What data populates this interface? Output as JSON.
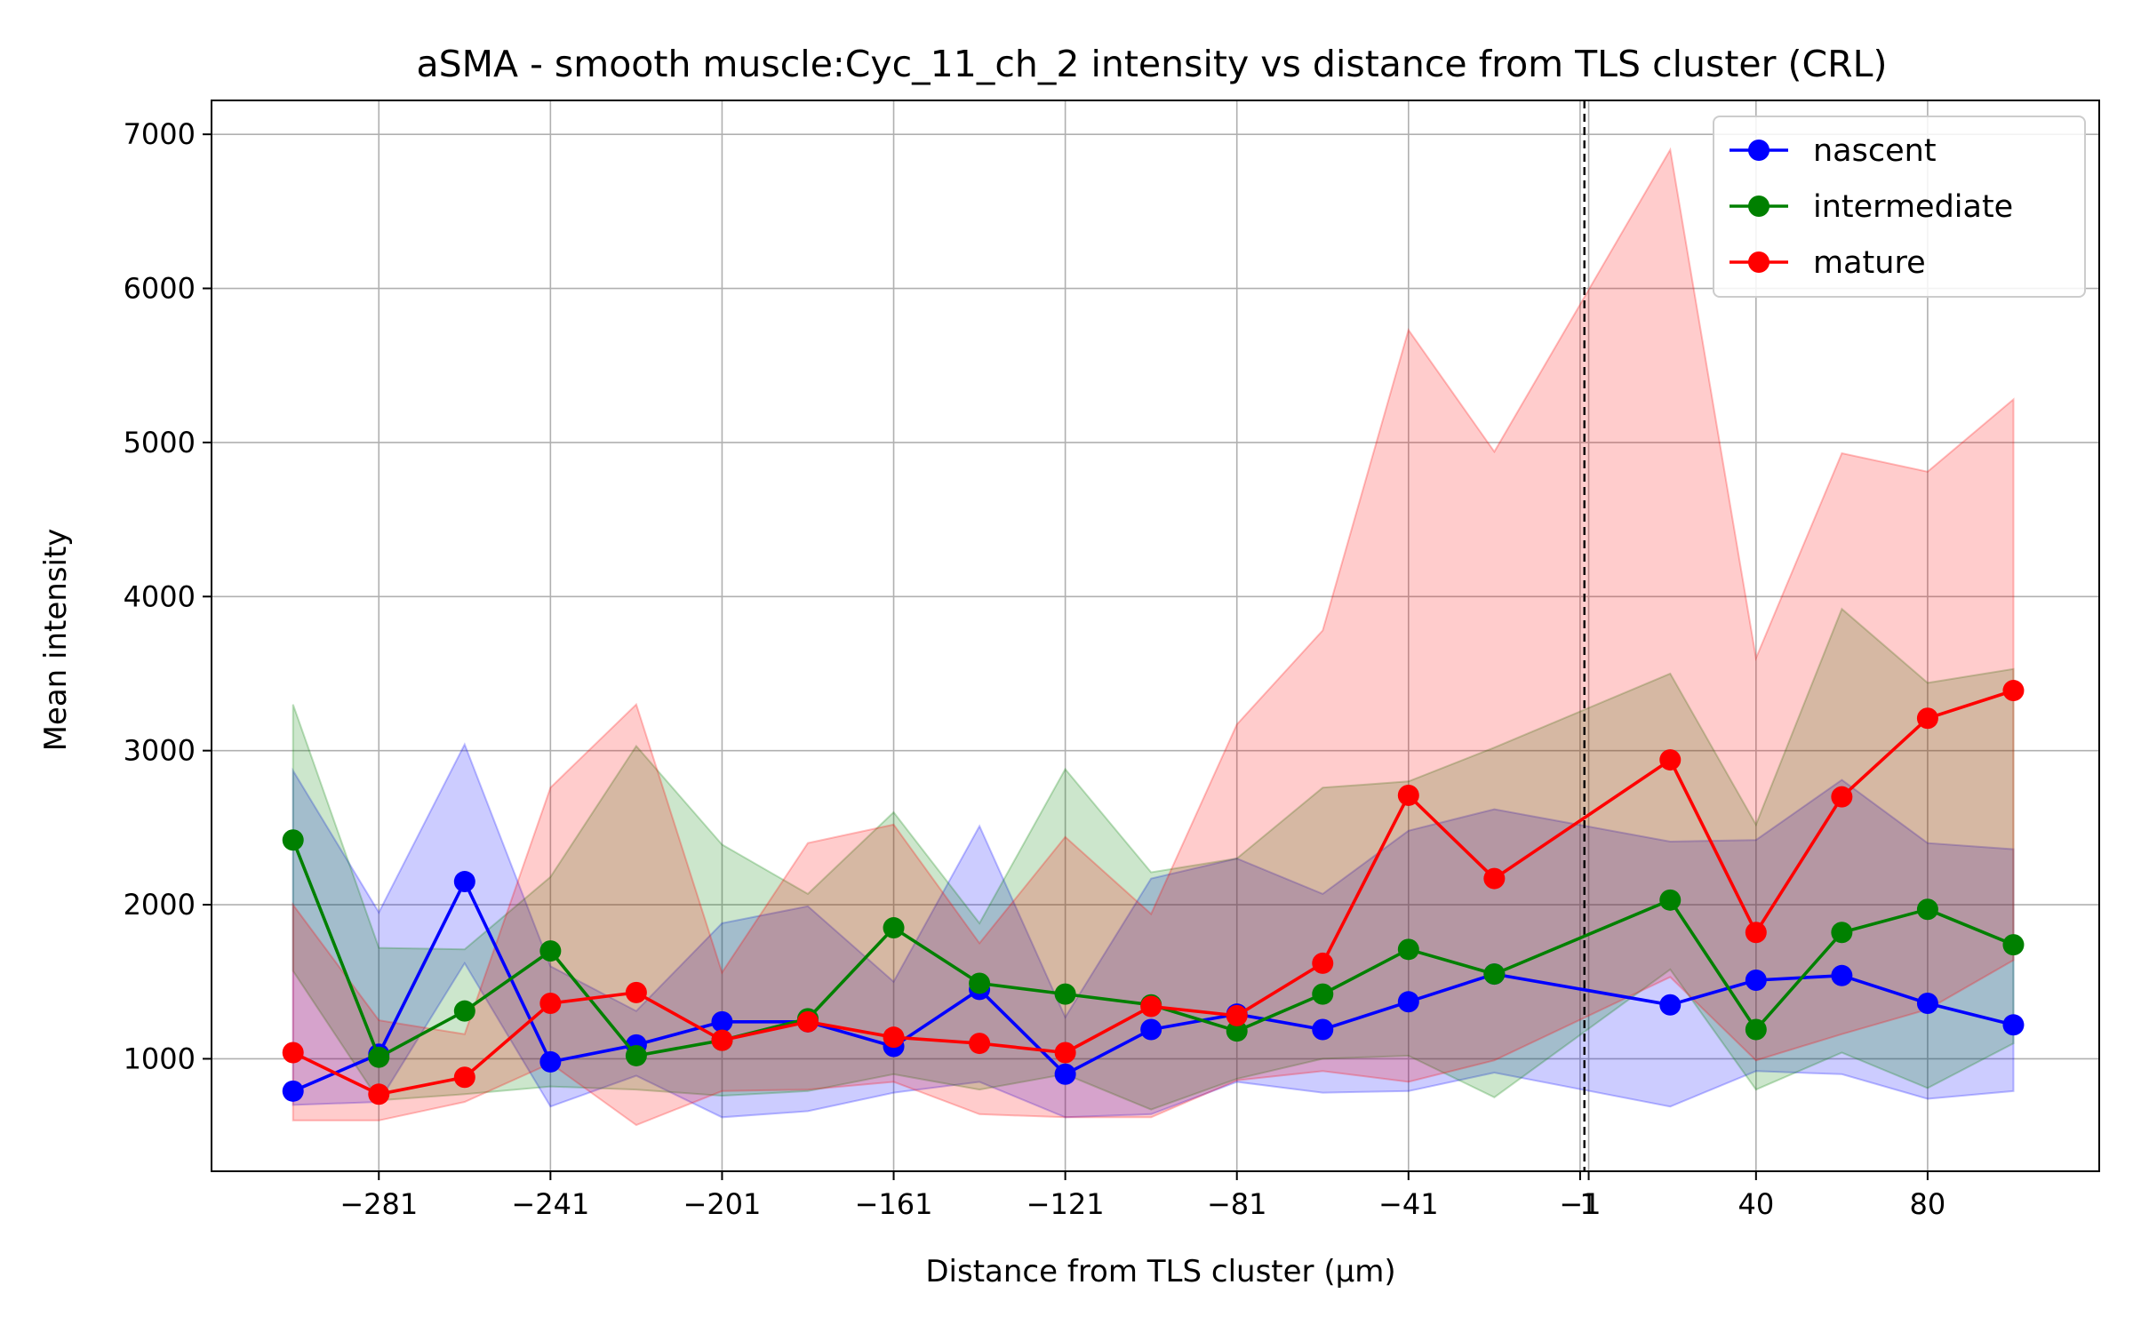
{
  "chart_data": {
    "type": "line",
    "title": "aSMA - smooth muscle:Cyc_11_ch_2 intensity vs distance from TLS cluster (CRL)",
    "xlabel": "Distance from TLS cluster (μm)",
    "ylabel": "Mean intensity",
    "xlim": [
      -320,
      120
    ],
    "ylim": [
      270,
      7220
    ],
    "x_ticks": [
      -281,
      -241,
      -201,
      -161,
      -121,
      -81,
      -41,
      -1,
      1,
      40,
      80
    ],
    "x_tick_labels": [
      "−281",
      "−241",
      "−201",
      "−161",
      "−121",
      "−81",
      "−41",
      "−1",
      "1",
      "40",
      "80"
    ],
    "y_ticks": [
      1000,
      2000,
      3000,
      4000,
      5000,
      6000,
      7000
    ],
    "y_tick_labels": [
      "1000",
      "2000",
      "3000",
      "4000",
      "5000",
      "6000",
      "7000"
    ],
    "grid": true,
    "legend_position": "top-right",
    "reference_line": {
      "x": 0,
      "style": "dashed",
      "color": "#000000"
    },
    "x": [
      -301,
      -281,
      -261,
      -241,
      -221,
      -201,
      -181,
      -161,
      -141,
      -121,
      -101,
      -81,
      -61,
      -41,
      -21,
      20,
      40,
      60,
      80,
      100
    ],
    "series": [
      {
        "name": "nascent",
        "color": "#0000ff",
        "values": [
          790,
          1030,
          2150,
          980,
          1090,
          1240,
          1240,
          1080,
          1450,
          900,
          1190,
          1290,
          1190,
          1370,
          1550,
          1350,
          1510,
          1540,
          1360,
          1220
        ],
        "lower": [
          700,
          720,
          1620,
          690,
          890,
          620,
          660,
          780,
          850,
          620,
          640,
          850,
          780,
          790,
          910,
          690,
          920,
          900,
          740,
          790
        ],
        "upper": [
          2870,
          1950,
          3040,
          1600,
          1310,
          1880,
          1990,
          1500,
          2510,
          1270,
          2170,
          2300,
          2070,
          2480,
          2620,
          2410,
          2420,
          2810,
          2400,
          2360
        ]
      },
      {
        "name": "intermediate",
        "color": "#008000",
        "values": [
          2420,
          1010,
          1310,
          1700,
          1020,
          1120,
          1260,
          1850,
          1490,
          1420,
          1350,
          1180,
          1420,
          1710,
          1550,
          2030,
          1190,
          1820,
          1970,
          1740
        ],
        "lower": [
          1570,
          730,
          770,
          820,
          800,
          760,
          790,
          900,
          800,
          900,
          670,
          870,
          1000,
          1020,
          750,
          1580,
          800,
          1040,
          810,
          1100
        ],
        "upper": [
          3300,
          1720,
          1710,
          2180,
          3030,
          2390,
          2070,
          2600,
          1880,
          2880,
          2210,
          2300,
          2760,
          2800,
          3020,
          3500,
          2520,
          3920,
          3440,
          3530
        ]
      },
      {
        "name": "mature",
        "color": "#ff0000",
        "values": [
          1040,
          770,
          880,
          1360,
          1430,
          1120,
          1240,
          1140,
          1100,
          1040,
          1340,
          1280,
          1620,
          2710,
          2170,
          2940,
          1820,
          2700,
          3210,
          3390
        ],
        "lower": [
          600,
          600,
          720,
          970,
          570,
          790,
          800,
          850,
          640,
          620,
          620,
          860,
          920,
          850,
          990,
          1530,
          990,
          1160,
          1320,
          1640
        ],
        "upper": [
          2000,
          1250,
          1160,
          2760,
          3300,
          1560,
          2400,
          2520,
          1750,
          2440,
          1940,
          3170,
          3780,
          5730,
          4940,
          6900,
          3600,
          4930,
          4810,
          5280
        ]
      }
    ]
  }
}
